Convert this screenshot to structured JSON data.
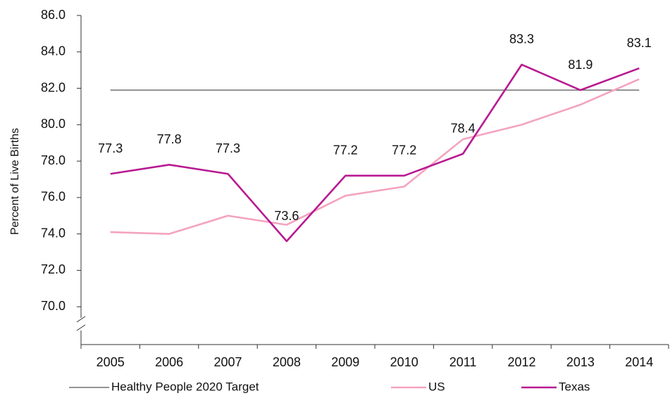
{
  "chart_data": {
    "type": "line",
    "ylabel": "Percent of Live Births",
    "categories": [
      "2005",
      "2006",
      "2007",
      "2008",
      "2009",
      "2010",
      "2011",
      "2012",
      "2013",
      "2014"
    ],
    "series": [
      {
        "name": "Healthy People 2020 Target",
        "color": "#555555",
        "values": [
          81.9,
          81.9,
          81.9,
          81.9,
          81.9,
          81.9,
          81.9,
          81.9,
          81.9,
          81.9
        ]
      },
      {
        "name": "US",
        "color": "#f4a3c0",
        "values": [
          74.1,
          74.0,
          75.0,
          74.5,
          76.1,
          76.6,
          79.2,
          80.0,
          81.1,
          82.5
        ]
      },
      {
        "name": "Texas",
        "color": "#b81a91",
        "values": [
          77.3,
          77.8,
          77.3,
          73.6,
          77.2,
          77.2,
          78.4,
          83.3,
          81.9,
          83.1
        ],
        "data_labels": true
      }
    ],
    "ylim": [
      68,
      86
    ],
    "yticks": [
      {
        "value": 70,
        "label": "70.0"
      },
      {
        "value": 72,
        "label": "72.0"
      },
      {
        "value": 74,
        "label": "74.0"
      },
      {
        "value": 76,
        "label": "76.0"
      },
      {
        "value": 78,
        "label": "78.0"
      },
      {
        "value": 80,
        "label": "80.0"
      },
      {
        "value": 82,
        "label": "82.0"
      },
      {
        "value": 84,
        "label": "84.0"
      },
      {
        "value": 86,
        "label": "86.0"
      }
    ],
    "grid": false
  }
}
